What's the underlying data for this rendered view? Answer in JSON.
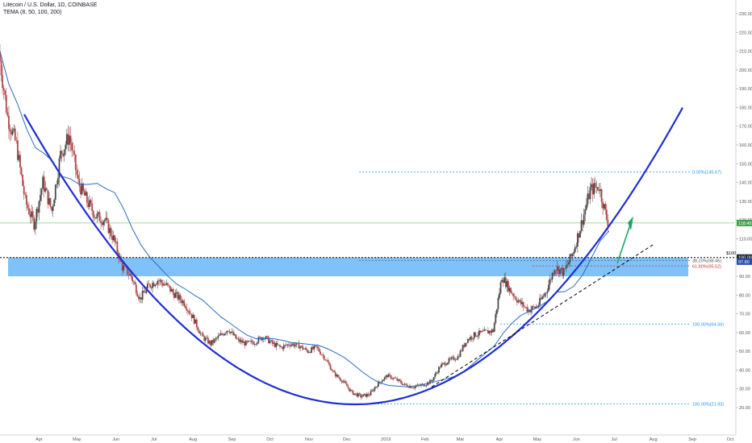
{
  "header": {
    "title": "Litecoin / U.S. Dollar, 1D, COINBASE",
    "indicator": "TEMA (8, 50, 100, 200)"
  },
  "colors": {
    "up": "#4a4a4a",
    "down": "#b04a4a",
    "parabola": "#1f2ed4",
    "ma": "#2a6bc4",
    "zone": "#2e9cf5",
    "fib": "#2196f3",
    "green_line": "#7bd17b",
    "arrow": "#1aa860",
    "price_tag": "#2a4aa8"
  },
  "chart_data": {
    "type": "candlestick",
    "title": "Litecoin / U.S. Dollar, 1D, COINBASE",
    "ylim": [
      16,
      232
    ],
    "y_ticks": [
      20,
      30,
      40,
      50,
      60,
      70,
      80,
      90,
      100,
      110,
      120,
      130,
      140,
      150,
      160,
      170,
      180,
      190,
      200,
      210,
      220,
      230
    ],
    "y_tick_labels": [
      "20.00",
      "30.00",
      "40.00",
      "50.00",
      "60.00",
      "70.00",
      "80.00",
      "90.00",
      "100.00",
      "110.00",
      "120.00",
      "130.00",
      "140.00",
      "150.00",
      "160.00",
      "170.00",
      "180.00",
      "190.00",
      "200.00",
      "210.00",
      "220.00",
      "230.00"
    ],
    "x_ticks": [
      "Apr",
      "May",
      "Jun",
      "Jul",
      "Aug",
      "Sep",
      "Oct",
      "Nov",
      "Dec",
      "2019",
      "Feb",
      "Mar",
      "Apr",
      "May",
      "Jun",
      "Jul",
      "Aug",
      "Sep",
      "Oct"
    ],
    "close_series": {
      "x": [
        "2018-03-01",
        "2018-03-08",
        "2018-03-15",
        "2018-03-22",
        "2018-03-29",
        "2018-04-05",
        "2018-04-12",
        "2018-04-19",
        "2018-04-26",
        "2018-05-03",
        "2018-05-10",
        "2018-05-17",
        "2018-05-24",
        "2018-05-31",
        "2018-06-07",
        "2018-06-14",
        "2018-06-21",
        "2018-06-28",
        "2018-07-05",
        "2018-07-12",
        "2018-07-19",
        "2018-07-26",
        "2018-08-02",
        "2018-08-09",
        "2018-08-16",
        "2018-08-23",
        "2018-08-30",
        "2018-09-06",
        "2018-09-13",
        "2018-09-20",
        "2018-09-27",
        "2018-10-04",
        "2018-10-11",
        "2018-10-18",
        "2018-10-25",
        "2018-11-01",
        "2018-11-08",
        "2018-11-15",
        "2018-11-22",
        "2018-11-29",
        "2018-12-06",
        "2018-12-13",
        "2018-12-20",
        "2018-12-27",
        "2019-01-03",
        "2019-01-10",
        "2019-01-17",
        "2019-01-24",
        "2019-01-31",
        "2019-02-07",
        "2019-02-14",
        "2019-02-21",
        "2019-02-28",
        "2019-03-07",
        "2019-03-14",
        "2019-03-21",
        "2019-03-28",
        "2019-04-04",
        "2019-04-11",
        "2019-04-18",
        "2019-04-25",
        "2019-05-02",
        "2019-05-09",
        "2019-05-16",
        "2019-05-23",
        "2019-05-30",
        "2019-06-06",
        "2019-06-13",
        "2019-06-20",
        "2019-06-27"
      ],
      "close": [
        210,
        175,
        160,
        130,
        118,
        140,
        125,
        155,
        165,
        140,
        130,
        122,
        120,
        110,
        95,
        90,
        78,
        85,
        88,
        85,
        80,
        76,
        68,
        58,
        54,
        58,
        62,
        56,
        54,
        55,
        58,
        54,
        52,
        54,
        53,
        50,
        52,
        46,
        38,
        34,
        28,
        26,
        27,
        33,
        37,
        35,
        32,
        31,
        32,
        34,
        42,
        45,
        47,
        56,
        59,
        60,
        61,
        90,
        82,
        76,
        72,
        74,
        82,
        95,
        92,
        102,
        118,
        136,
        138,
        118
      ]
    },
    "annotations": {
      "resistance_label": "$100",
      "support_zone": [
        90,
        100
      ],
      "current_price_line": 118.4,
      "price_tags": [
        {
          "label": "118.40",
          "value": 118.4
        },
        {
          "label": "100.00",
          "value": 100
        },
        {
          "label": "97.80",
          "value": 97.8
        }
      ],
      "fib_levels": [
        {
          "label": "0.00%(145.67)",
          "value": 145.67
        },
        {
          "label": "38.20%(98.46)",
          "value": 98.46
        },
        {
          "label": "61.80%(95.52)",
          "value": 95.52
        },
        {
          "label": "100.00%(64.56)",
          "value": 64.56
        },
        {
          "label": "100.00%(21.93)",
          "value": 21.93
        }
      ]
    }
  }
}
